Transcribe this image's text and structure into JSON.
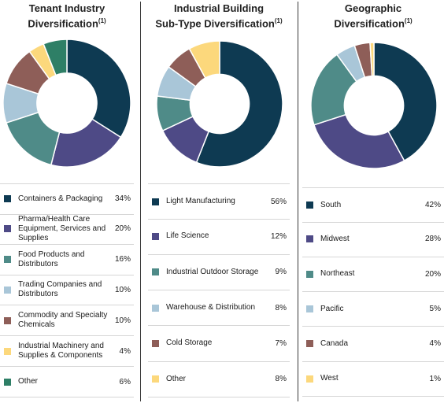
{
  "chart_data": [
    {
      "type": "pie",
      "title": "Tenant Industry",
      "title_line2": "Diversification",
      "title_sup": "(1)",
      "categories": [
        "Containers & Packaging",
        "Pharma/Health Care Equipment, Services and Supplies",
        "Food Products and Distributors",
        "Trading Companies and Distributors",
        "Commodity and Specialty Chemicals",
        "Industrial Machinery and Supplies & Components",
        "Other"
      ],
      "values": [
        34,
        20,
        16,
        10,
        10,
        4,
        6
      ],
      "value_labels": [
        "34%",
        "20%",
        "16%",
        "10%",
        "10%",
        "4%",
        "6%"
      ],
      "colors": [
        "#0e3a52",
        "#4e4a86",
        "#4f8b88",
        "#a9c6d8",
        "#8e5e58",
        "#fcd87c",
        "#2e7f66"
      ]
    },
    {
      "type": "pie",
      "title": "Industrial Building",
      "title_line2": "Sub-Type Diversification",
      "title_sup": "(1)",
      "categories": [
        "Light Manufacturing",
        "Life Science",
        "Industrial Outdoor Storage",
        "Warehouse & Distribution",
        "Cold Storage",
        "Other"
      ],
      "values": [
        56,
        12,
        9,
        8,
        7,
        8
      ],
      "value_labels": [
        "56%",
        "12%",
        "9%",
        "8%",
        "7%",
        "8%"
      ],
      "colors": [
        "#0e3a52",
        "#4e4a86",
        "#4f8b88",
        "#a9c6d8",
        "#8e5e58",
        "#fcd87c"
      ]
    },
    {
      "type": "pie",
      "title": "Geographic",
      "title_line2": "Diversification",
      "title_sup": "(1)",
      "categories": [
        "South",
        "Midwest",
        "Northeast",
        "Pacific",
        "Canada",
        "West"
      ],
      "values": [
        42,
        28,
        20,
        5,
        4,
        1
      ],
      "value_labels": [
        "42%",
        "28%",
        "20%",
        "5%",
        "4%",
        "1%"
      ],
      "colors": [
        "#0e3a52",
        "#4e4a86",
        "#4f8b88",
        "#a9c6d8",
        "#8e5e58",
        "#fcd87c"
      ]
    }
  ]
}
